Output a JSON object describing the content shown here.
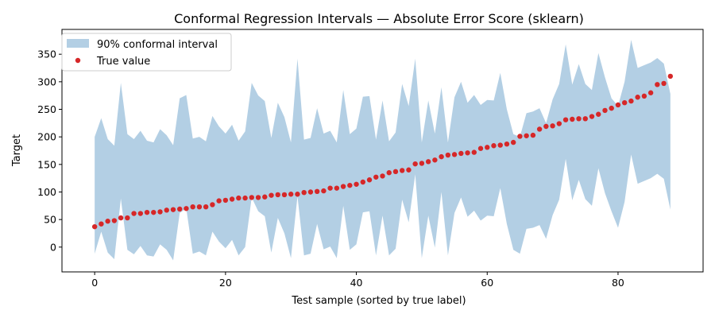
{
  "chart_data": {
    "type": "area",
    "title": "Conformal Regression Intervals — Absolute Error Score (sklearn)",
    "xlabel": "Test sample (sorted by true label)",
    "ylabel": "Target",
    "xlim": [
      -5,
      93
    ],
    "ylim": [
      -45,
      395
    ],
    "xticks": [
      0,
      20,
      40,
      60,
      80
    ],
    "yticks": [
      0,
      50,
      100,
      150,
      200,
      250,
      300,
      350
    ],
    "legend_position": "top-left",
    "colors": {
      "interval": "#b3cfe4",
      "true_value": "#d62728"
    },
    "series": [
      {
        "name": "90% conformal interval",
        "kind": "band",
        "upper": [
          200,
          234,
          196,
          184,
          298,
          205,
          196,
          211,
          193,
          190,
          214,
          203,
          185,
          270,
          276,
          197,
          200,
          192,
          238,
          219,
          206,
          222,
          193,
          210,
          298,
          275,
          265,
          198,
          262,
          236,
          190,
          342,
          195,
          198,
          252,
          206,
          211,
          190,
          285,
          205,
          215,
          273,
          274,
          195,
          266,
          192,
          208,
          296,
          256,
          342,
          190,
          266,
          206,
          290,
          190,
          272,
          300,
          262,
          276,
          258,
          267,
          266,
          316,
          250,
          205,
          200,
          243,
          246,
          252,
          225,
          268,
          296,
          368,
          295,
          332,
          296,
          285,
          352,
          308,
          270,
          256,
          300,
          376,
          325,
          330,
          335,
          343,
          333,
          278
        ],
        "lower": [
          -12,
          28,
          -10,
          -22,
          88,
          -5,
          -13,
          2,
          -15,
          -17,
          5,
          -5,
          -24,
          62,
          70,
          -12,
          -8,
          -15,
          28,
          10,
          -2,
          13,
          -15,
          0,
          90,
          65,
          56,
          -10,
          53,
          25,
          -20,
          92,
          -15,
          -12,
          42,
          -4,
          1,
          -20,
          75,
          -5,
          5,
          63,
          65,
          -15,
          57,
          -15,
          -3,
          86,
          45,
          132,
          -20,
          57,
          -1,
          100,
          -15,
          62,
          90,
          55,
          66,
          48,
          57,
          56,
          107,
          42,
          -5,
          -12,
          33,
          35,
          40,
          15,
          58,
          86,
          160,
          85,
          122,
          87,
          75,
          143,
          98,
          65,
          35,
          82,
          168,
          115,
          120,
          125,
          133,
          124,
          68
        ]
      },
      {
        "name": "True value",
        "kind": "scatter",
        "values": [
          37,
          42,
          47,
          48,
          53,
          53,
          61,
          61,
          63,
          63,
          64,
          67,
          68,
          69,
          70,
          73,
          73,
          73,
          77,
          84,
          85,
          87,
          89,
          89,
          90,
          90,
          91,
          94,
          95,
          95,
          96,
          96,
          99,
          100,
          101,
          102,
          107,
          107,
          110,
          112,
          114,
          118,
          122,
          127,
          129,
          135,
          137,
          139,
          140,
          151,
          152,
          155,
          158,
          164,
          167,
          168,
          170,
          171,
          172,
          179,
          181,
          184,
          185,
          187,
          190,
          201,
          202,
          203,
          214,
          219,
          220,
          224,
          231,
          232,
          233,
          233,
          237,
          241,
          248,
          252,
          258,
          262,
          265,
          272,
          274,
          280,
          295,
          297,
          310
        ]
      }
    ]
  }
}
